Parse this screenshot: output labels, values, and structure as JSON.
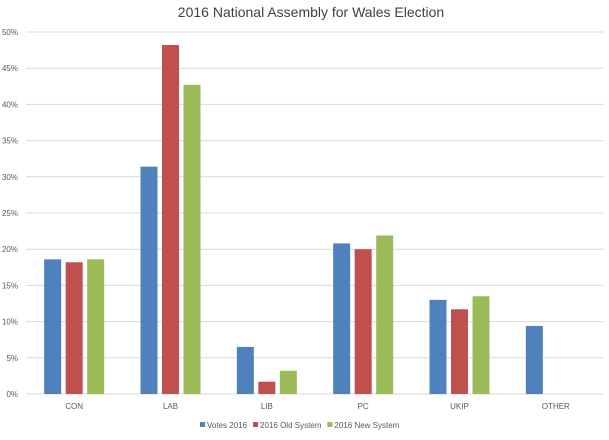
{
  "chart_data": {
    "type": "bar",
    "title": "2016 National Assembly for Wales Election",
    "xlabel": "",
    "ylabel": "",
    "categories": [
      "CON",
      "LAB",
      "LIB",
      "PC",
      "UKIP",
      "OTHER"
    ],
    "series": [
      {
        "name": "Votes 2016",
        "color": "#4f81bd",
        "values": [
          18.6,
          31.4,
          6.5,
          20.8,
          13.0,
          9.4
        ]
      },
      {
        "name": "2016 Old System",
        "color": "#c0504d",
        "values": [
          18.2,
          48.2,
          1.7,
          20.0,
          11.7,
          0
        ]
      },
      {
        "name": "2016 New System",
        "color": "#9bbb59",
        "values": [
          18.6,
          42.7,
          3.2,
          21.9,
          13.5,
          0
        ]
      }
    ],
    "ylim": [
      0,
      50
    ],
    "yticks": [
      "0%",
      "5%",
      "10%",
      "15%",
      "20%",
      "25%",
      "30%",
      "35%",
      "40%",
      "45%",
      "50%"
    ],
    "grid": true,
    "legend": "bottom"
  }
}
